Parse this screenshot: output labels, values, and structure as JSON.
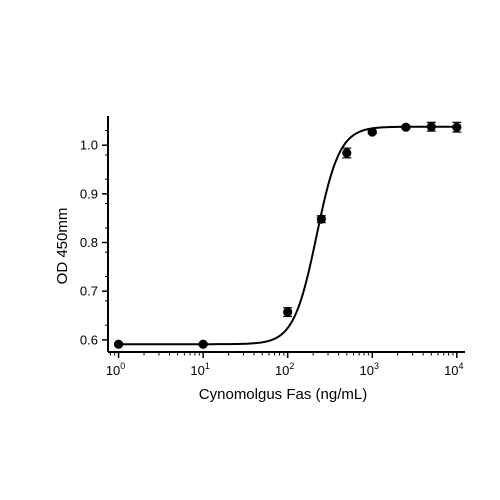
{
  "chart_data": {
    "type": "scatter",
    "title": "",
    "xlabel": "Cynomolgus Fas (ng/mL)",
    "ylabel": "OD 450mm",
    "xscale": "log10",
    "xlim": [
      0.75,
      12500
    ],
    "ylim": [
      0.575,
      1.06
    ],
    "grid": false,
    "legend": "none",
    "x_ticks": [
      {
        "base": "10",
        "exp": "0",
        "value": 1
      },
      {
        "base": "10",
        "exp": "1",
        "value": 10
      },
      {
        "base": "10",
        "exp": "2",
        "value": 100
      },
      {
        "base": "10",
        "exp": "3",
        "value": 1000
      },
      {
        "base": "10",
        "exp": "4",
        "value": 10000
      }
    ],
    "y_ticks": [
      "0.6",
      "0.7",
      "0.8",
      "0.9",
      "1.0"
    ],
    "series": [
      {
        "points": [
          {
            "x": 1,
            "y": 0.591,
            "err": 0.002
          },
          {
            "x": 10,
            "y": 0.591,
            "err": 0.002
          },
          {
            "x": 100,
            "y": 0.657,
            "err": 0.009
          },
          {
            "x": 250,
            "y": 0.848,
            "err": 0.007
          },
          {
            "x": 500,
            "y": 0.984,
            "err": 0.01
          },
          {
            "x": 1000,
            "y": 1.027,
            "err": 0.003
          },
          {
            "x": 2500,
            "y": 1.037,
            "err": 0.003
          },
          {
            "x": 5000,
            "y": 1.038,
            "err": 0.009
          },
          {
            "x": 10000,
            "y": 1.037,
            "err": 0.01
          }
        ],
        "fit": {
          "bottom": 0.591,
          "top": 1.038,
          "ec50": 220,
          "hill": 3.2
        },
        "color": "#000000"
      }
    ]
  }
}
